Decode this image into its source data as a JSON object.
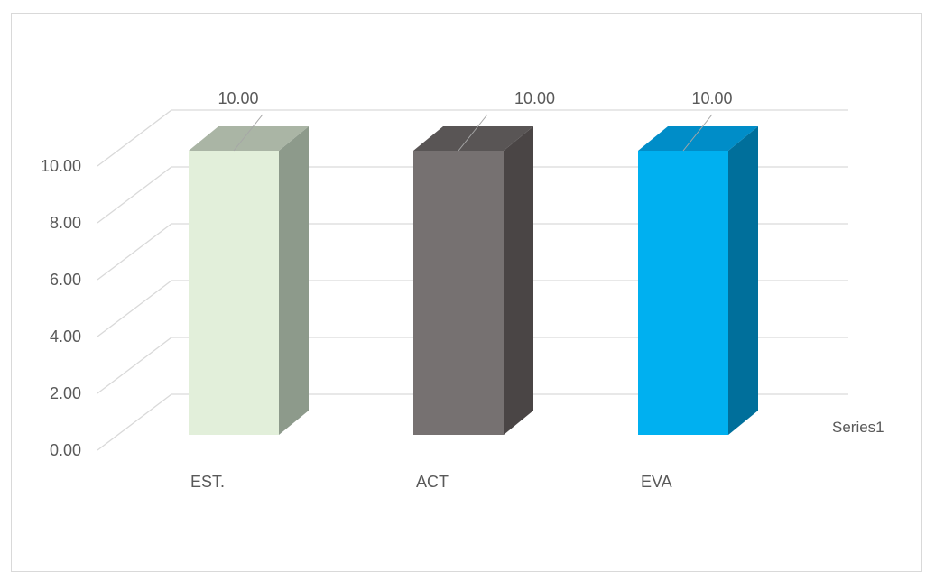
{
  "chart_data": {
    "type": "bar",
    "categories": [
      "EST.",
      "ACT",
      "EVA"
    ],
    "series": [
      {
        "name": "Series1",
        "values": [
          10.0,
          10.0,
          10.0
        ]
      }
    ],
    "data_labels": [
      "10.00",
      "10.00",
      "10.00"
    ],
    "ylim": [
      0,
      10
    ],
    "yticks": [
      "0.00",
      "2.00",
      "4.00",
      "6.00",
      "8.00",
      "10.00"
    ],
    "grid": true,
    "three_d": true,
    "title": "",
    "xlabel": "",
    "ylabel": "",
    "colors": [
      {
        "front": "#e2efda",
        "side": "#8d9a8b",
        "top": "#aab5a5"
      },
      {
        "front": "#767171",
        "side": "#4a4545",
        "top": "#595555"
      },
      {
        "front": "#00b0f0",
        "side": "#006f9b",
        "top": "#008dc8"
      }
    ]
  }
}
